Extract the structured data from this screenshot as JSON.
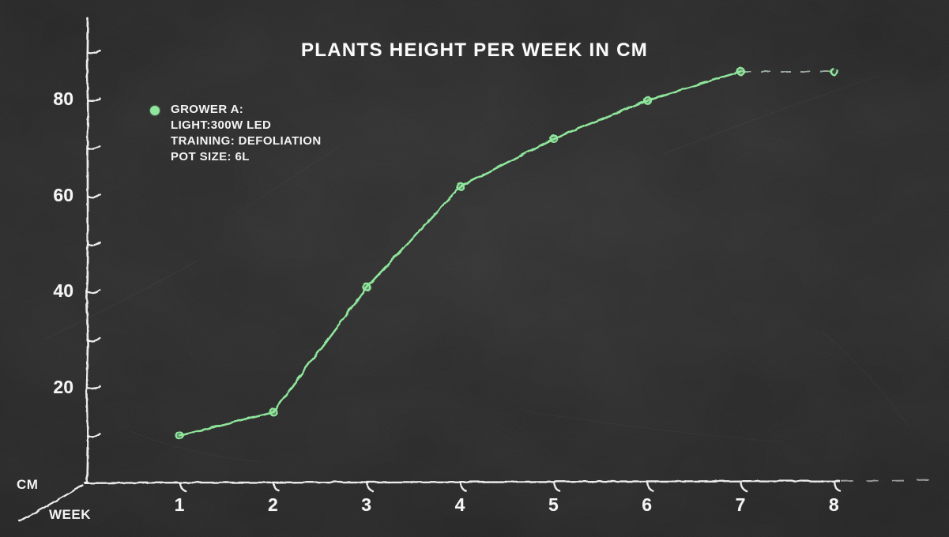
{
  "title": "PLANTS HEIGHT PER WEEK IN CM",
  "legend": {
    "marker_color": "#8fe69c",
    "lines": [
      "GROWER A:",
      "LIGHT:300W LED",
      "TRAINING: DEFOLIATION",
      "POT SIZE: 6L"
    ]
  },
  "axes": {
    "x_label": "WEEK",
    "y_label": "CM"
  },
  "colors": {
    "line_green": "#8fe69c",
    "dashed_segment": "#cfe8d2",
    "chalk_white": "#f5f5f5",
    "board_background": "#242424",
    "text_white": "#f3f3f3"
  },
  "chart_data": {
    "type": "line",
    "title": "PLANTS HEIGHT PER WEEK IN CM",
    "xlabel": "WEEK",
    "ylabel": "CM",
    "x": [
      1,
      2,
      3,
      4,
      5,
      6,
      7,
      8
    ],
    "series": [
      {
        "name": "GROWER A: LIGHT:300W LED, TRAINING: DEFOLIATION, POT SIZE: 6L",
        "values": [
          10,
          15,
          41,
          62,
          72,
          80,
          86,
          86
        ]
      }
    ],
    "xticks": [
      1,
      2,
      3,
      4,
      5,
      6,
      7,
      8
    ],
    "yticks": [
      10,
      20,
      30,
      40,
      50,
      60,
      70,
      80,
      90
    ],
    "ytick_labels": [
      20,
      40,
      60,
      80
    ],
    "xlim": [
      0,
      9
    ],
    "ylim": [
      0,
      95
    ],
    "grid": false,
    "legend_position": "upper-left",
    "line_style": "solid weeks 1-7, dashed projection weeks 7-8",
    "marker": "circle",
    "style": "hand-drawn chalkboard"
  }
}
